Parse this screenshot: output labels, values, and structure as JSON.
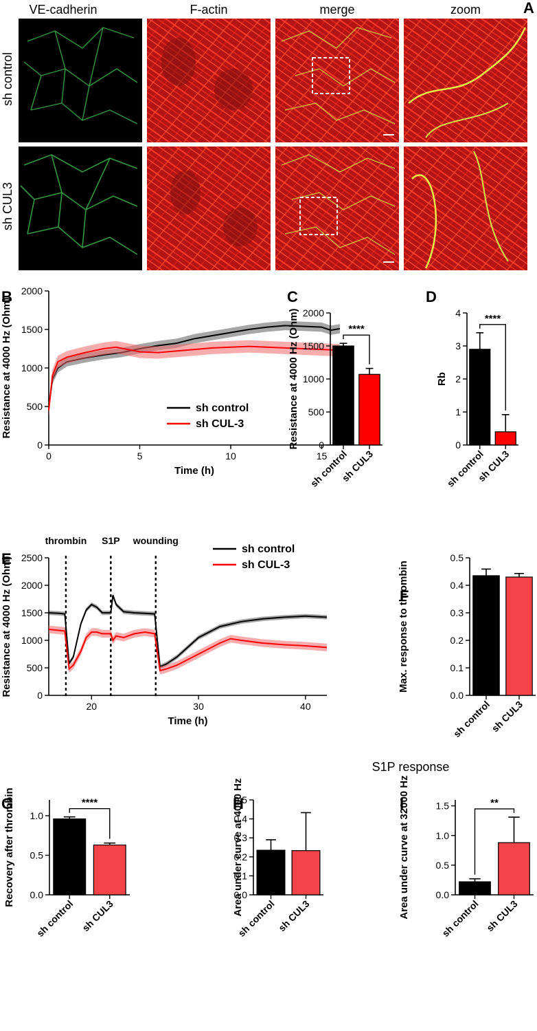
{
  "figure": {
    "panel_A": {
      "label": "A",
      "columns": [
        "VE-cadherin",
        "F-actin",
        "merge",
        "zoom"
      ],
      "rows": [
        "sh control",
        "sh CUL3"
      ]
    },
    "s1p_note": "S1P response"
  },
  "colors": {
    "black": "#000000",
    "red": "#ff0000",
    "light_red": "#f44447",
    "red_error": "#f06a6a"
  },
  "chart_data": [
    {
      "id": "B",
      "label": "B",
      "type": "line",
      "xlabel": "Time (h)",
      "ylabel": "Resistance at 4000 Hz (Ohm)",
      "xlim": [
        0,
        16
      ],
      "ylim": [
        0,
        2000
      ],
      "xticks": [
        "0",
        "5",
        "10",
        "15"
      ],
      "yticks": [
        "0",
        "500",
        "1000",
        "1500",
        "2000"
      ],
      "series": [
        {
          "name": "sh control",
          "color": "#000000",
          "x": [
            0,
            0.2,
            0.5,
            1,
            2,
            3,
            4,
            5,
            6,
            7,
            8,
            9,
            10,
            11,
            12,
            13,
            14,
            15,
            15.5,
            16
          ],
          "y": [
            480,
            850,
            1000,
            1080,
            1130,
            1170,
            1200,
            1250,
            1290,
            1320,
            1380,
            1420,
            1460,
            1500,
            1530,
            1550,
            1540,
            1530,
            1490,
            1510
          ],
          "err": 60
        },
        {
          "name": "sh CUL-3",
          "color": "#ff0000",
          "x": [
            0,
            0.2,
            0.5,
            1,
            2,
            3,
            3.7,
            5,
            6,
            7,
            8,
            9,
            10,
            11,
            12,
            13,
            14,
            15,
            16
          ],
          "y": [
            450,
            900,
            1080,
            1140,
            1200,
            1250,
            1270,
            1210,
            1200,
            1220,
            1240,
            1260,
            1270,
            1280,
            1270,
            1260,
            1250,
            1240,
            1230
          ],
          "err": 80
        }
      ]
    },
    {
      "id": "C",
      "label": "C",
      "type": "bar",
      "ylabel": "Resistance at 4000 Hz (Ohm)",
      "categories": [
        "sh control",
        "sh CUL3"
      ],
      "values": [
        1500,
        1070
      ],
      "errors": [
        40,
        90
      ],
      "colors": [
        "#000000",
        "#ff0000"
      ],
      "ylim": [
        0,
        2000
      ],
      "yticks": [
        "0",
        "500",
        "1000",
        "1500",
        "2000"
      ],
      "significance": "****"
    },
    {
      "id": "D",
      "label": "D",
      "type": "bar",
      "ylabel": "Rb",
      "categories": [
        "sh control",
        "sh CUL3"
      ],
      "values": [
        2.9,
        0.4
      ],
      "errors": [
        0.5,
        0.52
      ],
      "colors": [
        "#000000",
        "#ff0000"
      ],
      "ylim": [
        0,
        4
      ],
      "yticks": [
        "0",
        "1",
        "2",
        "3",
        "4"
      ],
      "significance": "****"
    },
    {
      "id": "E",
      "label": "E",
      "type": "line",
      "xlabel": "Time (h)",
      "ylabel": "Resistance at 4000 Hz (Ohm)",
      "xlim": [
        16,
        42
      ],
      "ylim": [
        0,
        2500
      ],
      "xticks": [
        "20",
        "30",
        "40"
      ],
      "yticks": [
        "0",
        "500",
        "1000",
        "1500",
        "2000",
        "2500"
      ],
      "events": [
        {
          "name": "thrombin",
          "x": 17.6
        },
        {
          "name": "S1P",
          "x": 21.8
        },
        {
          "name": "wounding",
          "x": 26
        }
      ],
      "series": [
        {
          "name": "sh control",
          "color": "#000000",
          "x": [
            16,
            17,
            17.5,
            17.9,
            18.3,
            19,
            19.5,
            20,
            20.5,
            21,
            21.8,
            22,
            22.3,
            23,
            24,
            25,
            25.9,
            26.4,
            27,
            28,
            30,
            32,
            34,
            36,
            38,
            40,
            42
          ],
          "y": [
            1500,
            1490,
            1480,
            580,
            700,
            1300,
            1550,
            1650,
            1600,
            1500,
            1500,
            1820,
            1650,
            1520,
            1500,
            1490,
            1480,
            520,
            570,
            700,
            1050,
            1250,
            1340,
            1390,
            1420,
            1440,
            1420
          ],
          "err": 40
        },
        {
          "name": "sh CUL-3",
          "color": "#ff0000",
          "x": [
            16,
            17,
            17.5,
            17.9,
            18.3,
            19,
            19.5,
            20,
            20.5,
            21,
            21.8,
            22,
            22.3,
            23,
            24,
            25,
            25.9,
            26.4,
            27,
            28,
            30,
            32,
            33,
            34,
            36,
            38,
            40,
            42
          ],
          "y": [
            1200,
            1180,
            1170,
            480,
            550,
            800,
            1050,
            1150,
            1150,
            1120,
            1120,
            1000,
            1080,
            1050,
            1120,
            1150,
            1120,
            450,
            480,
            550,
            750,
            950,
            1030,
            1000,
            950,
            920,
            900,
            870
          ],
          "err": 70
        }
      ]
    },
    {
      "id": "F",
      "label": "F",
      "type": "bar",
      "ylabel": "Max. response to thrombin",
      "categories": [
        "sh control",
        "sh CUL3"
      ],
      "values": [
        0.435,
        0.43
      ],
      "errors": [
        0.024,
        0.013
      ],
      "colors": [
        "#000000",
        "#f44447"
      ],
      "ylim": [
        0,
        0.5
      ],
      "yticks": [
        "0.0",
        "0.1",
        "0.2",
        "0.3",
        "0.4",
        "0.5"
      ]
    },
    {
      "id": "G",
      "label": "G",
      "type": "bar",
      "ylabel": "Recovery after thrombin",
      "categories": [
        "sh control",
        "sh CUL3"
      ],
      "values": [
        0.96,
        0.63
      ],
      "errors": [
        0.025,
        0.025
      ],
      "colors": [
        "#000000",
        "#f44447"
      ],
      "ylim": [
        0,
        1.2
      ],
      "yticks": [
        "0.0",
        "0.5",
        "1.0"
      ],
      "significance": "****"
    },
    {
      "id": "H",
      "label": "H",
      "type": "bar",
      "ylabel": "Area under curve at 4000 Hz",
      "categories": [
        "sh control",
        "sh CUL3"
      ],
      "values": [
        0.235,
        0.233
      ],
      "errors": [
        0.055,
        0.2
      ],
      "colors": [
        "#000000",
        "#f44447"
      ],
      "ylim": [
        0,
        0.5
      ],
      "yticks": [
        "0.0",
        "0.1",
        "0.2",
        "0.3",
        "0.4",
        "0.5"
      ]
    },
    {
      "id": "I",
      "label": "I",
      "type": "bar",
      "ylabel": "Area under curve at  32000 Hz",
      "categories": [
        "sh control",
        "sh CUL3"
      ],
      "values": [
        0.22,
        0.88
      ],
      "errors": [
        0.05,
        0.43
      ],
      "colors": [
        "#000000",
        "#f44447"
      ],
      "ylim": [
        0,
        1.6
      ],
      "yticks": [
        "0.0",
        "0.5",
        "1.0",
        "1.5"
      ],
      "significance": "**"
    }
  ]
}
